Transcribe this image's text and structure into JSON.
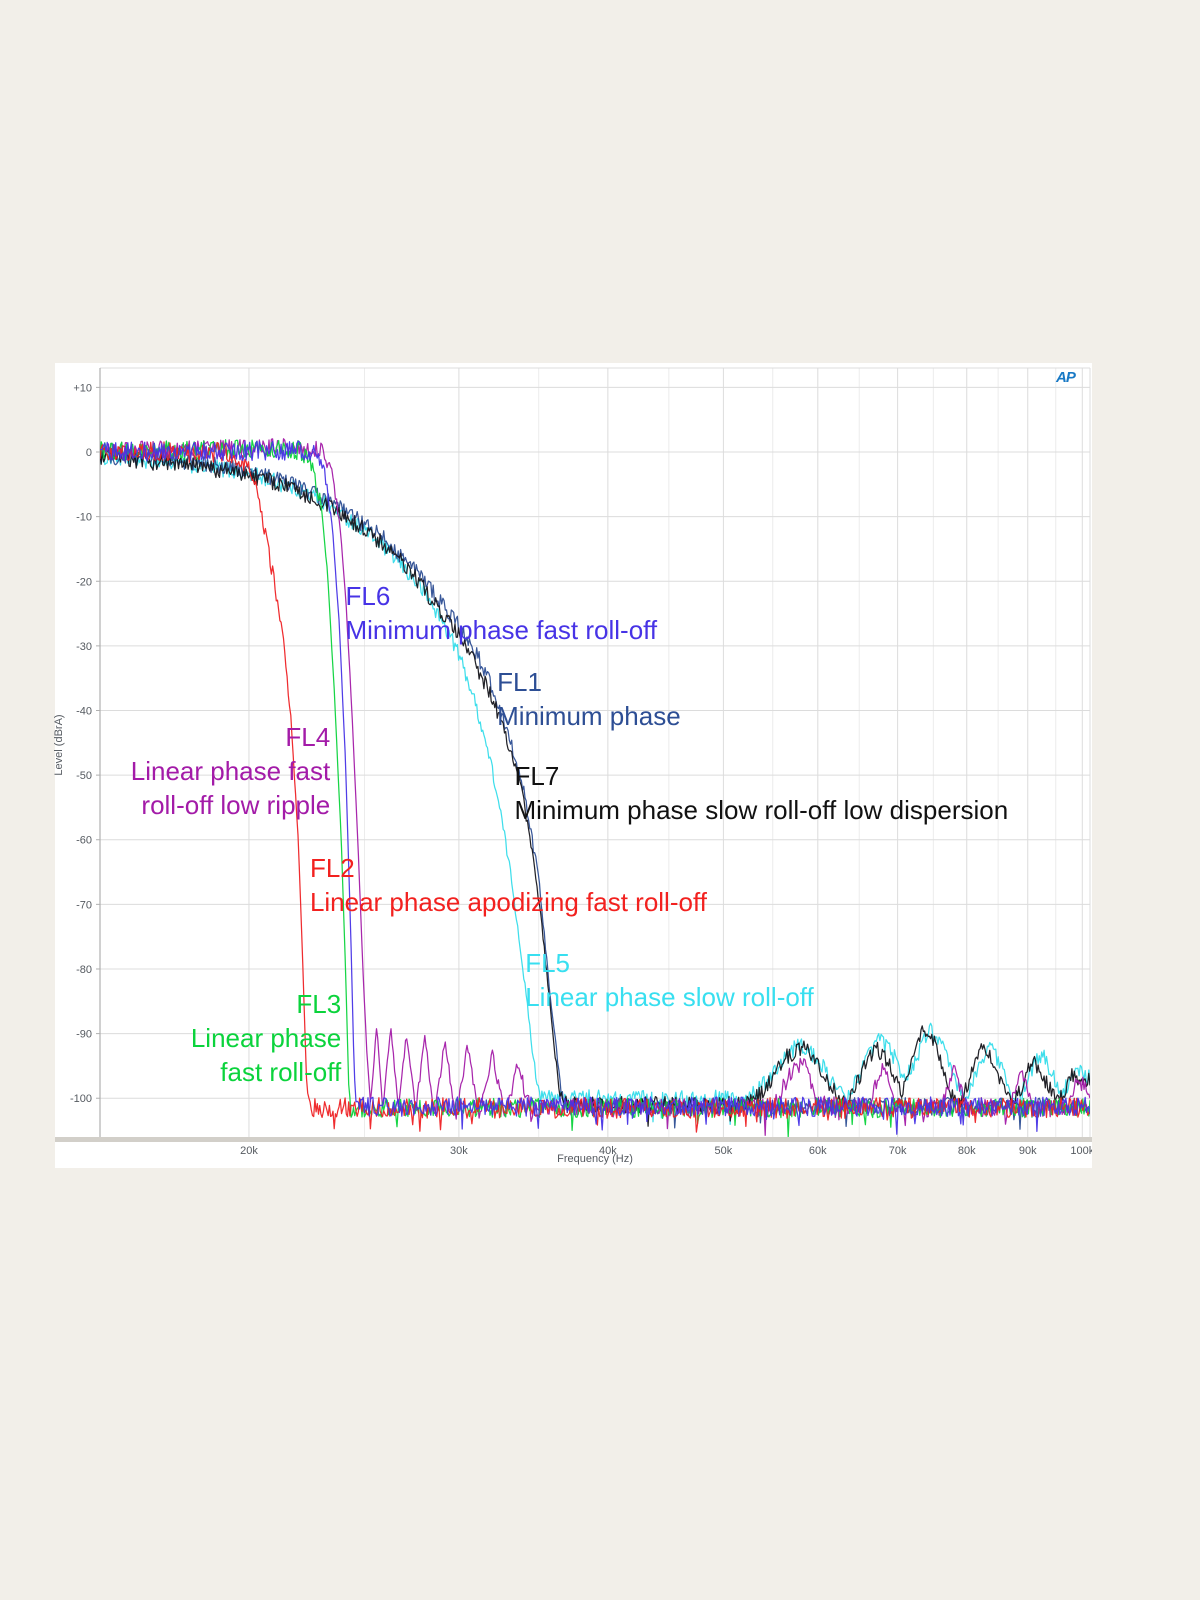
{
  "logo": {
    "label": "AP",
    "color": "#1879c5"
  },
  "chart_data": {
    "type": "line",
    "title": "",
    "xlabel": "Frequency (Hz)",
    "ylabel": "Level (dBrA)",
    "x_scale": "log",
    "x_domain_khz": [
      15,
      101.5
    ],
    "y_domain_db": [
      -106,
      13
    ],
    "grid": true,
    "legend_position": "inline-annotations",
    "x_ticks": [
      {
        "v": 20,
        "label": "20k"
      },
      {
        "v": 30,
        "label": "30k"
      },
      {
        "v": 40,
        "label": "40k"
      },
      {
        "v": 50,
        "label": "50k"
      },
      {
        "v": 60,
        "label": "60k"
      },
      {
        "v": 70,
        "label": "70k"
      },
      {
        "v": 80,
        "label": "80k"
      },
      {
        "v": 90,
        "label": "90k"
      },
      {
        "v": 100,
        "label": "100k"
      }
    ],
    "x_minor_ticks_khz": [
      25,
      35,
      45,
      55,
      65,
      75,
      85,
      95
    ],
    "y_ticks": [
      {
        "v": 10,
        "label": "+10"
      },
      {
        "v": 0,
        "label": "0"
      },
      {
        "v": -10,
        "label": "-10"
      },
      {
        "v": -20,
        "label": "-20"
      },
      {
        "v": -30,
        "label": "-30"
      },
      {
        "v": -40,
        "label": "-40"
      },
      {
        "v": -50,
        "label": "-50"
      },
      {
        "v": -60,
        "label": "-60"
      },
      {
        "v": -70,
        "label": "-70"
      },
      {
        "v": -80,
        "label": "-80"
      },
      {
        "v": -90,
        "label": "-90"
      },
      {
        "v": -100,
        "label": "-100"
      }
    ],
    "series": [
      {
        "id": "FL5",
        "name": "Linear phase slow roll-off",
        "color": "#35dcea",
        "noise_db": 1.3,
        "points": [
          [
            15,
            -0.7
          ],
          [
            17,
            -1.5
          ],
          [
            19,
            -2.6
          ],
          [
            20,
            -3.4
          ],
          [
            21,
            -4.5
          ],
          [
            22,
            -5.8
          ],
          [
            23,
            -7.5
          ],
          [
            24,
            -9.8
          ],
          [
            25,
            -12
          ],
          [
            26,
            -14.8
          ],
          [
            27,
            -18
          ],
          [
            28,
            -21.5
          ],
          [
            29,
            -26
          ],
          [
            29.8,
            -30
          ],
          [
            30.5,
            -35
          ],
          [
            31.2,
            -41
          ],
          [
            31.9,
            -48
          ],
          [
            32.6,
            -57
          ],
          [
            33.2,
            -66
          ],
          [
            33.8,
            -77
          ],
          [
            34.3,
            -87
          ],
          [
            34.7,
            -95
          ],
          [
            35.1,
            -99.5
          ],
          [
            36,
            -100
          ],
          [
            40,
            -100
          ],
          [
            52,
            -100
          ],
          [
            54,
            -98
          ],
          [
            56,
            -94
          ],
          [
            58,
            -91.5
          ],
          [
            60,
            -94
          ],
          [
            62,
            -98
          ],
          [
            63.5,
            -100
          ],
          [
            65.5,
            -95
          ],
          [
            67.5,
            -90.5
          ],
          [
            69.5,
            -93.5
          ],
          [
            71,
            -97
          ],
          [
            72.5,
            -94
          ],
          [
            74.5,
            -89
          ],
          [
            76.5,
            -92.5
          ],
          [
            78.5,
            -98
          ],
          [
            80,
            -100
          ],
          [
            81.5,
            -96
          ],
          [
            83.5,
            -91.5
          ],
          [
            85.5,
            -95
          ],
          [
            87,
            -99
          ],
          [
            88.5,
            -100
          ],
          [
            90.5,
            -96
          ],
          [
            92.5,
            -93
          ],
          [
            94.5,
            -96.5
          ],
          [
            96,
            -99
          ],
          [
            97.5,
            -98
          ],
          [
            99,
            -95.5
          ],
          [
            101.5,
            -97
          ]
        ]
      },
      {
        "id": "FL1",
        "name": "Minimum phase",
        "color": "#2d4e94",
        "noise_db": 1.3,
        "points": [
          [
            15,
            -0.5
          ],
          [
            17,
            -1.2
          ],
          [
            19,
            -2.2
          ],
          [
            20,
            -3
          ],
          [
            22,
            -5.2
          ],
          [
            24,
            -9
          ],
          [
            26,
            -13.5
          ],
          [
            28,
            -19.5
          ],
          [
            30,
            -27
          ],
          [
            31,
            -31
          ],
          [
            32,
            -36.5
          ],
          [
            33,
            -43.5
          ],
          [
            34,
            -52.5
          ],
          [
            35,
            -66
          ],
          [
            35.7,
            -82
          ],
          [
            36.2,
            -92
          ],
          [
            36.6,
            -100
          ],
          [
            37,
            -101.2
          ],
          [
            50,
            -101.2
          ],
          [
            75,
            -101.2
          ],
          [
            101.5,
            -101.2
          ]
        ]
      },
      {
        "id": "FL7",
        "name": "Minimum phase slow roll-off low dispersion",
        "color": "#16161c",
        "noise_db": 1.3,
        "points": [
          [
            15,
            -0.8
          ],
          [
            16,
            -1.2
          ],
          [
            17,
            -1.7
          ],
          [
            18,
            -2.2
          ],
          [
            19,
            -2.8
          ],
          [
            20,
            -3.5
          ],
          [
            21,
            -4.7
          ],
          [
            22,
            -6
          ],
          [
            23,
            -7.8
          ],
          [
            24,
            -10
          ],
          [
            25,
            -12
          ],
          [
            26,
            -14.5
          ],
          [
            27,
            -17.5
          ],
          [
            28,
            -21
          ],
          [
            29,
            -25
          ],
          [
            30,
            -28.5
          ],
          [
            31,
            -33
          ],
          [
            32,
            -38
          ],
          [
            33,
            -45
          ],
          [
            34,
            -54
          ],
          [
            34.7,
            -64
          ],
          [
            35.2,
            -73
          ],
          [
            35.7,
            -84
          ],
          [
            36.1,
            -93
          ],
          [
            36.5,
            -100
          ],
          [
            37,
            -101
          ],
          [
            40,
            -101
          ],
          [
            52,
            -101
          ],
          [
            54,
            -99
          ],
          [
            56.5,
            -93.5
          ],
          [
            58.5,
            -92
          ],
          [
            60.5,
            -96
          ],
          [
            62,
            -99
          ],
          [
            63.5,
            -101
          ],
          [
            65,
            -97
          ],
          [
            67,
            -92
          ],
          [
            69,
            -95
          ],
          [
            70.5,
            -99
          ],
          [
            71.5,
            -96
          ],
          [
            73.5,
            -88.5
          ],
          [
            75.5,
            -92
          ],
          [
            77.5,
            -99
          ],
          [
            79,
            -101
          ],
          [
            80.5,
            -97
          ],
          [
            82.5,
            -91.5
          ],
          [
            84.5,
            -95
          ],
          [
            86,
            -99
          ],
          [
            87.5,
            -101
          ],
          [
            89,
            -98
          ],
          [
            91,
            -94
          ],
          [
            93,
            -97
          ],
          [
            95,
            -100
          ],
          [
            96.5,
            -99
          ],
          [
            98,
            -96.5
          ],
          [
            100,
            -98
          ],
          [
            101.5,
            -97
          ]
        ]
      },
      {
        "id": "FL4",
        "name": "Linear phase fast roll-off low ripple",
        "color": "#a31ba8",
        "noise_db": 1.4,
        "points": [
          [
            15,
            0.2
          ],
          [
            20,
            0.6
          ],
          [
            22,
            0.8
          ],
          [
            23,
            0.5
          ],
          [
            23.4,
            -2
          ],
          [
            23.8,
            -10
          ],
          [
            24.1,
            -22
          ],
          [
            24.4,
            -40
          ],
          [
            24.7,
            -62
          ],
          [
            24.95,
            -82
          ],
          [
            25.1,
            -92
          ],
          [
            25.3,
            -101
          ],
          [
            25.6,
            -88.5
          ],
          [
            25.9,
            -102
          ],
          [
            26.3,
            -89
          ],
          [
            26.7,
            -102
          ],
          [
            27.1,
            -90
          ],
          [
            27.6,
            -102
          ],
          [
            28.1,
            -90.5
          ],
          [
            28.6,
            -103
          ],
          [
            29.2,
            -91
          ],
          [
            29.8,
            -103
          ],
          [
            30.5,
            -92
          ],
          [
            31.2,
            -103
          ],
          [
            32,
            -93
          ],
          [
            32.8,
            -103
          ],
          [
            33.6,
            -95
          ],
          [
            34.5,
            -102
          ],
          [
            36,
            -101.5
          ],
          [
            45,
            -101.5
          ],
          [
            55,
            -101.5
          ],
          [
            57,
            -96
          ],
          [
            58.5,
            -94
          ],
          [
            60,
            -101
          ],
          [
            66,
            -101.5
          ],
          [
            68,
            -95
          ],
          [
            70,
            -101.5
          ],
          [
            76,
            -101.5
          ],
          [
            78,
            -95.5
          ],
          [
            80,
            -101.5
          ],
          [
            87,
            -101.5
          ],
          [
            89,
            -96
          ],
          [
            91,
            -101.5
          ],
          [
            97,
            -101.5
          ],
          [
            99,
            -97
          ],
          [
            101.5,
            -99
          ]
        ]
      },
      {
        "id": "FL3",
        "name": "Linear phase fast roll-off",
        "color": "#0bd33c",
        "noise_db": 1.5,
        "points": [
          [
            15,
            0.2
          ],
          [
            18,
            0.3
          ],
          [
            20,
            0.5
          ],
          [
            21,
            0.4
          ],
          [
            22,
            0.3
          ],
          [
            22.5,
            -1
          ],
          [
            23,
            -8
          ],
          [
            23.3,
            -20
          ],
          [
            23.6,
            -38
          ],
          [
            23.9,
            -60
          ],
          [
            24.1,
            -80
          ],
          [
            24.25,
            -98
          ],
          [
            24.35,
            -101.5
          ],
          [
            30,
            -101.5
          ],
          [
            50,
            -101.5
          ],
          [
            75,
            -101.5
          ],
          [
            101.5,
            -101.5
          ]
        ]
      },
      {
        "id": "FL2",
        "name": "Linear phase apodizing fast roll-off",
        "color": "#ee2124",
        "noise_db": 1.6,
        "points": [
          [
            15,
            0.3
          ],
          [
            16,
            0
          ],
          [
            17,
            0.2
          ],
          [
            18,
            -0.1
          ],
          [
            19,
            0
          ],
          [
            19.5,
            -0.6
          ],
          [
            20,
            -2.5
          ],
          [
            20.3,
            -6
          ],
          [
            20.6,
            -12
          ],
          [
            21,
            -20
          ],
          [
            21.4,
            -30
          ],
          [
            21.7,
            -42
          ],
          [
            22,
            -60
          ],
          [
            22.2,
            -80
          ],
          [
            22.35,
            -97
          ],
          [
            22.5,
            -101.5
          ],
          [
            30,
            -101.5
          ],
          [
            50,
            -101.5
          ],
          [
            75,
            -101.5
          ],
          [
            101.5,
            -101.5
          ]
        ]
      },
      {
        "id": "FL6",
        "name": "Minimum phase fast roll-off",
        "color": "#4733e6",
        "noise_db": 1.5,
        "points": [
          [
            15,
            0
          ],
          [
            20,
            0.2
          ],
          [
            22,
            0.2
          ],
          [
            22.8,
            -0.5
          ],
          [
            23.2,
            -4
          ],
          [
            23.5,
            -12
          ],
          [
            23.8,
            -26
          ],
          [
            24.1,
            -48
          ],
          [
            24.35,
            -75
          ],
          [
            24.5,
            -95
          ],
          [
            24.6,
            -101.3
          ],
          [
            30,
            -101.3
          ],
          [
            50,
            -101.3
          ],
          [
            75,
            -101.3
          ],
          [
            101.5,
            -101.3
          ]
        ]
      }
    ],
    "annotations": [
      {
        "lines": [
          "FL6",
          "Minimum phase fast roll-off"
        ],
        "color": "#4733e6",
        "f_khz": 24.1,
        "db": -19.6,
        "align": "left"
      },
      {
        "lines": [
          "FL1",
          "Minimum phase"
        ],
        "color": "#2d4e94",
        "f_khz": 32.3,
        "db": -33,
        "align": "left"
      },
      {
        "lines": [
          "FL4",
          "Linear phase fast",
          "roll-off low ripple"
        ],
        "color": "#a31ba8",
        "f_khz": 23.4,
        "db": -41.4,
        "align": "right"
      },
      {
        "lines": [
          "FL7",
          "Minimum phase slow roll-off low dispersion"
        ],
        "color": "#111111",
        "f_khz": 33.4,
        "db": -47.5,
        "align": "left"
      },
      {
        "lines": [
          "FL2",
          "Linear phase apodizing fast roll-off"
        ],
        "color": "#f2211f",
        "f_khz": 22.5,
        "db": -61.8,
        "align": "left"
      },
      {
        "lines": [
          "FL5",
          "Linear phase slow roll-off"
        ],
        "color": "#38dff0",
        "f_khz": 34.1,
        "db": -76.4,
        "align": "left"
      },
      {
        "lines": [
          "FL3",
          "Linear phase",
          "fast roll-off"
        ],
        "color": "#0bd33c",
        "f_khz": 23.9,
        "db": -82.8,
        "align": "right"
      }
    ],
    "colors": {
      "grid_major": "#dcdcdc",
      "grid_minor": "#ececec",
      "axis_line": "#b0b0b0",
      "tick_text": "#555a60",
      "bottom_band": "#d2cfc9"
    }
  }
}
